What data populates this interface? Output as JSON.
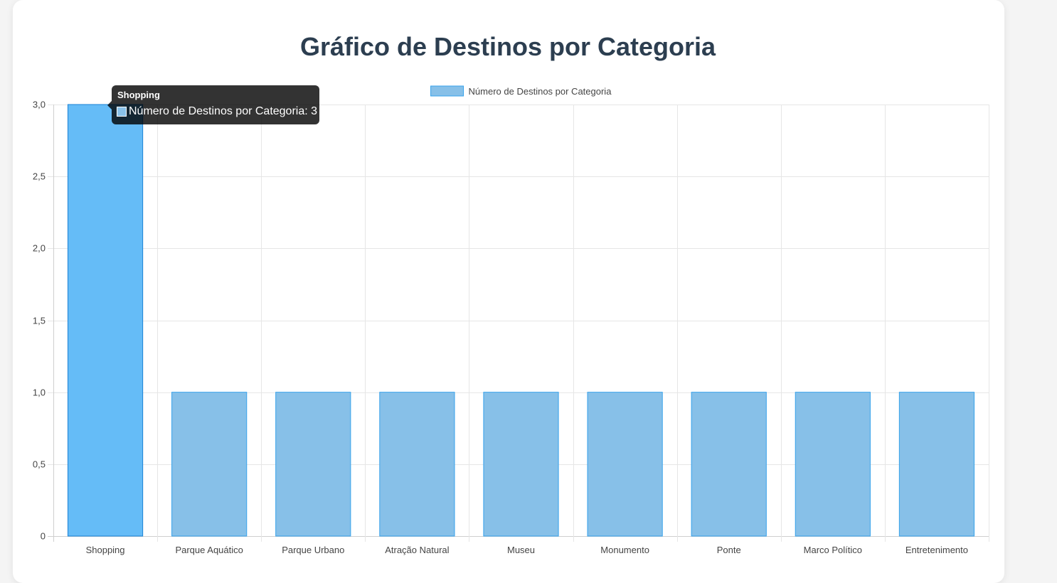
{
  "page": {
    "title": "Gráfico de Destinos por Categoria"
  },
  "colors": {
    "bar_fill": "#87c0e8",
    "bar_border": "#36a2eb",
    "bar_hover_fill": "#65bcf7",
    "bar_hover_border": "#1a82d6",
    "grid": "#e6e6e6",
    "tick_text": "#444444",
    "title_text": "#2c3e50",
    "tooltip_bg": "#333333"
  },
  "tooltip": {
    "title": "Shopping",
    "label": "Número de Destinos por Categoria: 3"
  },
  "chart_data": {
    "type": "bar",
    "title": "Gráfico de Destinos por Categoria",
    "categories": [
      "Shopping",
      "Parque Aquático",
      "Parque Urbano",
      "Atração Natural",
      "Museu",
      "Monumento",
      "Ponte",
      "Marco Político",
      "Entretenimento"
    ],
    "series": [
      {
        "name": "Número de Destinos por Categoria",
        "values": [
          3,
          1,
          1,
          1,
          1,
          1,
          1,
          1,
          1
        ]
      }
    ],
    "ylim": [
      0,
      3
    ],
    "y_ticks": [
      "0",
      "0,5",
      "1,0",
      "1,5",
      "2,0",
      "2,5",
      "3,0"
    ],
    "legend_position": "top-center",
    "grid": true,
    "highlighted_category": "Shopping"
  }
}
